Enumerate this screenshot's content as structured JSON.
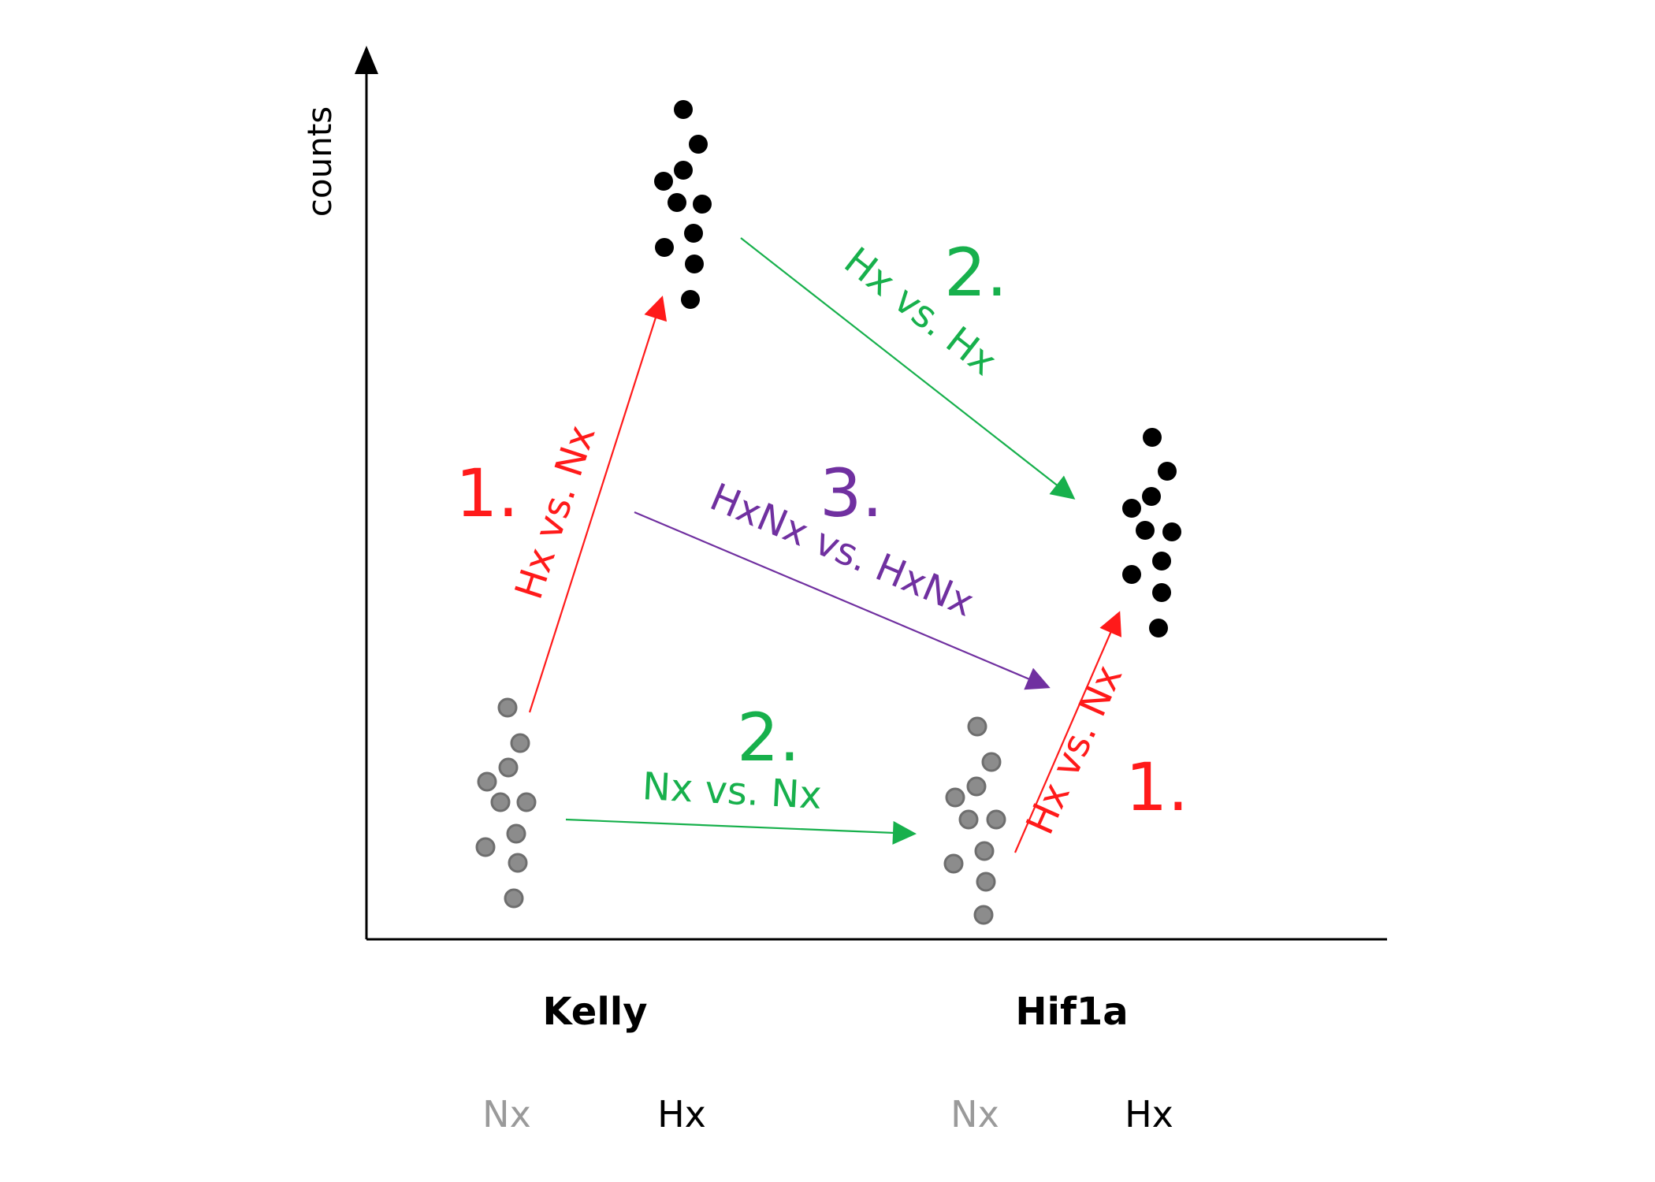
{
  "axis": {
    "ylabel": "counts"
  },
  "groups": [
    {
      "label": "Kelly",
      "conditions": [
        "Nx",
        "Hx"
      ]
    },
    {
      "label": "Hif1a",
      "conditions": [
        "Nx",
        "Hx"
      ]
    }
  ],
  "comparisons": {
    "kelly_hx_vs_nx": {
      "number": "1.",
      "label": "Hx vs. Nx"
    },
    "hif1a_hx_vs_nx": {
      "number": "1.",
      "label": "Hx vs. Nx"
    },
    "hx_vs_hx": {
      "number": "2.",
      "label": "Hx vs. Hx"
    },
    "nx_vs_nx": {
      "number": "2.",
      "label": "Nx vs. Nx"
    },
    "interaction": {
      "number": "3.",
      "label": "HxNx vs. HxNx"
    }
  },
  "colors": {
    "nx_points": "#8c8c8c",
    "hx_points": "#000000",
    "nx_label": "#9a9a9a",
    "hx_label": "#000000",
    "comparison_1": "#ff1a1a",
    "comparison_2": "#17b04c",
    "comparison_3": "#7030a0"
  }
}
